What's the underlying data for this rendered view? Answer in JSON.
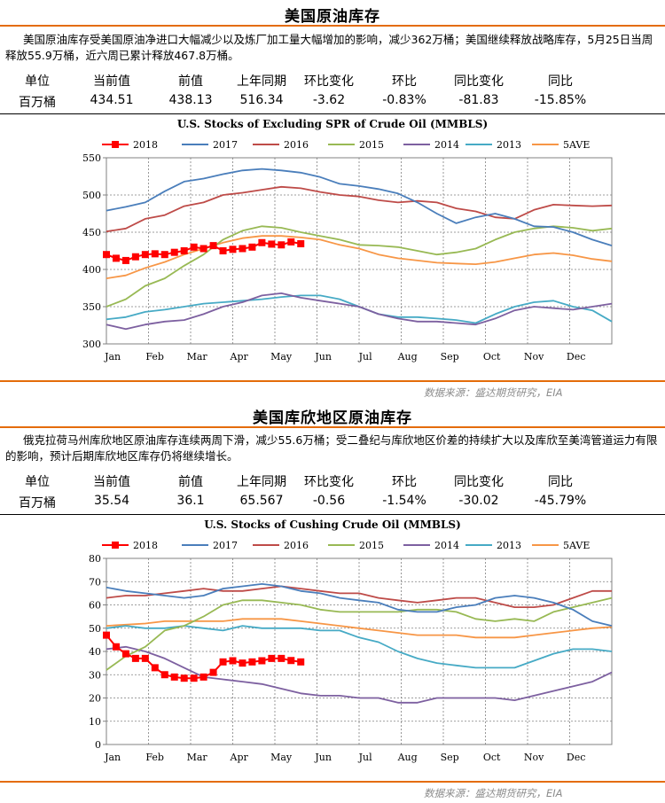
{
  "colors": {
    "accent": "#e46c0a",
    "s2018": "#ff0000",
    "s2017": "#4a7ebb",
    "s2016": "#be4b48",
    "s2015": "#98b954",
    "s2014": "#7d60a0",
    "s2013": "#46aac5",
    "s5ave": "#f79646"
  },
  "panels": [
    {
      "title": "美国原油库存",
      "description": "美国原油库存受美国原油净进口大幅减少以及炼厂加工量大幅增加的影响，减少362万桶；美国继续释放战略库存，5月25日当周释放55.9万桶，近六周已累计释放467.8万桶。",
      "stats_headers": [
        "单位",
        "当前值",
        "前值",
        "上年同期",
        "环比变化",
        "环比",
        "同比变化",
        "同比"
      ],
      "stats_values": [
        "百万桶",
        "434.51",
        "438.13",
        "516.34",
        "-3.62",
        "-0.83%",
        "-81.83",
        "-15.85%"
      ],
      "source": "数据来源：盛达期货研究，EIA"
    },
    {
      "title": "美国库欣地区原油库存",
      "description": "俄克拉荷马州库欣地区原油库存连续两周下滑，减少55.6万桶；受二叠纪与库欣地区价差的持续扩大以及库欣至美湾管道运力有限的影响，预计后期库欣地区库存仍将继续增长。",
      "stats_headers": [
        "单位",
        "当前值",
        "前值",
        "上年同期",
        "环比变化",
        "环比",
        "同比变化",
        "同比"
      ],
      "stats_values": [
        "百万桶",
        "35.54",
        "36.1",
        "65.567",
        "-0.56",
        "-1.54%",
        "-30.02",
        "-45.79%"
      ],
      "source": "数据来源：盛达期货研究，EIA"
    }
  ],
  "chart_data": [
    {
      "type": "line",
      "title": "U.S.  Stocks of Excluding SPR of Crude Oil (MMBLS)",
      "x_label_months": [
        "Jan",
        "Feb",
        "Mar",
        "Apr",
        "May",
        "Jun",
        "Jul",
        "Aug",
        "Sep",
        "Oct",
        "Nov",
        "Dec"
      ],
      "ylim": [
        300,
        550
      ],
      "yticks": [
        300,
        350,
        400,
        450,
        500,
        550
      ],
      "x_unit": "week",
      "xlim": [
        1,
        53
      ],
      "legend": [
        "2018",
        "2017",
        "2016",
        "2015",
        "2014",
        "2013",
        "5AVE"
      ],
      "series": [
        {
          "name": "2018",
          "x": [
            1,
            2,
            3,
            4,
            5,
            6,
            7,
            8,
            9,
            10,
            11,
            12,
            13,
            14,
            15,
            16,
            17,
            18,
            19,
            20,
            21
          ],
          "values": [
            420,
            415,
            412,
            417,
            420,
            421,
            420,
            423,
            425,
            430,
            428,
            432,
            425,
            427,
            428,
            430,
            436,
            434,
            433,
            437,
            434.5
          ]
        },
        {
          "name": "2017",
          "x": [
            1,
            3,
            5,
            7,
            9,
            11,
            13,
            15,
            17,
            19,
            21,
            23,
            25,
            27,
            29,
            31,
            33,
            35,
            37,
            39,
            41,
            43,
            45,
            47,
            49,
            51,
            53
          ],
          "values": [
            479,
            484,
            490,
            505,
            518,
            522,
            528,
            533,
            535,
            533,
            530,
            524,
            515,
            512,
            508,
            502,
            490,
            475,
            462,
            470,
            475,
            468,
            458,
            457,
            450,
            440,
            432
          ]
        },
        {
          "name": "2016",
          "x": [
            1,
            3,
            5,
            7,
            9,
            11,
            13,
            15,
            17,
            19,
            21,
            23,
            25,
            27,
            29,
            31,
            33,
            35,
            37,
            39,
            41,
            43,
            45,
            47,
            49,
            51,
            53
          ],
          "values": [
            451,
            455,
            468,
            473,
            485,
            490,
            500,
            503,
            507,
            511,
            509,
            504,
            500,
            498,
            493,
            490,
            492,
            490,
            482,
            478,
            470,
            468,
            480,
            487,
            486,
            485,
            486
          ]
        },
        {
          "name": "2015",
          "x": [
            1,
            3,
            5,
            7,
            9,
            11,
            13,
            15,
            17,
            19,
            21,
            23,
            25,
            27,
            29,
            31,
            33,
            35,
            37,
            39,
            41,
            43,
            45,
            47,
            49,
            51,
            53
          ],
          "values": [
            350,
            360,
            378,
            388,
            405,
            420,
            440,
            452,
            458,
            456,
            450,
            445,
            440,
            433,
            432,
            430,
            425,
            420,
            423,
            428,
            440,
            450,
            455,
            458,
            456,
            452,
            455
          ]
        },
        {
          "name": "2014",
          "x": [
            1,
            3,
            5,
            7,
            9,
            11,
            13,
            15,
            17,
            19,
            21,
            23,
            25,
            27,
            29,
            31,
            33,
            35,
            37,
            39,
            41,
            43,
            45,
            47,
            49,
            51,
            53
          ],
          "values": [
            326,
            320,
            326,
            330,
            332,
            340,
            350,
            356,
            365,
            368,
            362,
            358,
            354,
            350,
            340,
            334,
            330,
            330,
            328,
            326,
            334,
            345,
            350,
            348,
            346,
            350,
            354
          ]
        },
        {
          "name": "2013",
          "x": [
            1,
            3,
            5,
            7,
            9,
            11,
            13,
            15,
            17,
            19,
            21,
            23,
            25,
            27,
            29,
            31,
            33,
            35,
            37,
            39,
            41,
            43,
            45,
            47,
            49,
            51,
            53
          ],
          "values": [
            333,
            336,
            343,
            346,
            350,
            354,
            356,
            358,
            360,
            363,
            365,
            365,
            360,
            350,
            340,
            336,
            336,
            334,
            332,
            328,
            340,
            350,
            356,
            358,
            350,
            345,
            330
          ]
        },
        {
          "name": "5AVE",
          "x": [
            1,
            3,
            5,
            7,
            9,
            11,
            13,
            15,
            17,
            19,
            21,
            23,
            25,
            27,
            29,
            31,
            33,
            35,
            37,
            39,
            41,
            43,
            45,
            47,
            49,
            51,
            53
          ],
          "values": [
            388,
            392,
            402,
            410,
            420,
            428,
            436,
            442,
            445,
            445,
            443,
            440,
            433,
            428,
            420,
            415,
            412,
            409,
            408,
            407,
            410,
            415,
            420,
            422,
            419,
            414,
            411
          ]
        }
      ]
    },
    {
      "type": "line",
      "title": "U.S.  Stocks of Cushing  Crude Oil (MMBLS)",
      "x_label_months": [
        "Jan",
        "Feb",
        "Mar",
        "Apr",
        "May",
        "Jun",
        "Jul",
        "Aug",
        "Sep",
        "Oct",
        "Nov",
        "Dec"
      ],
      "ylim": [
        0,
        80
      ],
      "yticks": [
        0,
        10,
        20,
        30,
        40,
        50,
        60,
        70,
        80
      ],
      "x_unit": "week",
      "xlim": [
        1,
        53
      ],
      "legend": [
        "2018",
        "2017",
        "2016",
        "2015",
        "2014",
        "2013",
        "5AVE"
      ],
      "series": [
        {
          "name": "2018",
          "x": [
            1,
            2,
            3,
            4,
            5,
            6,
            7,
            8,
            9,
            10,
            11,
            12,
            13,
            14,
            15,
            16,
            17,
            18,
            19,
            20,
            21
          ],
          "values": [
            47,
            42,
            39,
            37,
            37,
            33,
            30,
            29,
            28.5,
            28.5,
            29,
            31,
            35.5,
            36,
            35,
            35.5,
            36,
            37,
            37,
            36.1,
            35.5
          ]
        },
        {
          "name": "2017",
          "x": [
            1,
            3,
            5,
            7,
            9,
            11,
            13,
            15,
            17,
            19,
            21,
            23,
            25,
            27,
            29,
            31,
            33,
            35,
            37,
            39,
            41,
            43,
            45,
            47,
            49,
            51,
            53
          ],
          "values": [
            67.5,
            66,
            65,
            64,
            63,
            64,
            67,
            68,
            69,
            68,
            66,
            65,
            63,
            62,
            61,
            58,
            57,
            57,
            59,
            60,
            63,
            64,
            63,
            61,
            58,
            53,
            51
          ]
        },
        {
          "name": "2016",
          "x": [
            1,
            3,
            5,
            7,
            9,
            11,
            13,
            15,
            17,
            19,
            21,
            23,
            25,
            27,
            29,
            31,
            33,
            35,
            37,
            39,
            41,
            43,
            45,
            47,
            49,
            51,
            53
          ],
          "values": [
            63,
            64,
            64,
            65,
            66,
            67,
            66,
            66,
            67,
            68,
            67,
            66,
            65,
            65,
            63,
            62,
            61,
            62,
            63,
            63,
            61,
            59,
            59,
            60,
            63,
            66,
            66
          ]
        },
        {
          "name": "2015",
          "x": [
            1,
            3,
            5,
            7,
            9,
            11,
            13,
            15,
            17,
            19,
            21,
            23,
            25,
            27,
            29,
            31,
            33,
            35,
            37,
            39,
            41,
            43,
            45,
            47,
            49,
            51,
            53
          ],
          "values": [
            32,
            38,
            42,
            49,
            51,
            55,
            60,
            62,
            62,
            61,
            60,
            58,
            57,
            57,
            57,
            57,
            58,
            58,
            57,
            54,
            53,
            54,
            53,
            57,
            59,
            61,
            63
          ]
        },
        {
          "name": "2014",
          "x": [
            1,
            3,
            5,
            7,
            9,
            11,
            13,
            15,
            17,
            19,
            21,
            23,
            25,
            27,
            29,
            31,
            33,
            35,
            37,
            39,
            41,
            43,
            45,
            47,
            49,
            51,
            53
          ],
          "values": [
            41,
            42,
            40,
            37,
            33,
            29,
            28,
            27,
            26,
            24,
            22,
            21,
            21,
            20,
            20,
            18,
            18,
            20,
            20,
            20,
            20,
            19,
            21,
            23,
            25,
            27,
            31
          ]
        },
        {
          "name": "2013",
          "x": [
            1,
            3,
            5,
            7,
            9,
            11,
            13,
            15,
            17,
            19,
            21,
            23,
            25,
            27,
            29,
            31,
            33,
            35,
            37,
            39,
            41,
            43,
            45,
            47,
            49,
            51,
            53
          ],
          "values": [
            50,
            51,
            50,
            50,
            51,
            50,
            49,
            51,
            50,
            50,
            50,
            49,
            49,
            46,
            44,
            40,
            37,
            35,
            34,
            33,
            33,
            33,
            36,
            39,
            41,
            41,
            40
          ]
        },
        {
          "name": "5AVE",
          "x": [
            1,
            3,
            5,
            7,
            9,
            11,
            13,
            15,
            17,
            19,
            21,
            23,
            25,
            27,
            29,
            31,
            33,
            35,
            37,
            39,
            41,
            43,
            45,
            47,
            49,
            51,
            53
          ],
          "values": [
            51,
            51.5,
            52,
            53,
            53,
            53,
            53,
            54,
            54,
            54,
            53,
            52,
            51,
            50,
            49,
            48,
            47,
            47,
            47,
            46,
            46,
            46,
            47,
            48,
            49,
            50,
            50.5
          ]
        }
      ]
    }
  ]
}
